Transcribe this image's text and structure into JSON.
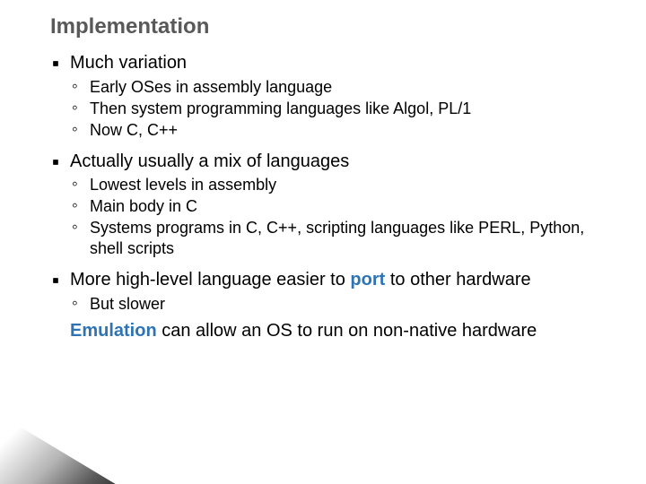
{
  "colors": {
    "title": "#595959",
    "text": "#000000",
    "highlight": "#2e74b5",
    "background": "#ffffff"
  },
  "typography": {
    "title_fontsize": 24,
    "l1_fontsize": 20,
    "l2_fontsize": 18,
    "font_family": "Lucida Sans"
  },
  "title": "Implementation",
  "b1": {
    "head": "Much variation",
    "s1": "Early OSes in assembly language",
    "s2": "Then system programming languages like Algol, PL/1",
    "s3": "Now C, C++"
  },
  "b2": {
    "head": "Actually usually a mix of languages",
    "s1": "Lowest levels in assembly",
    "s2": "Main body in C",
    "s3": "Systems programs in C, C++, scripting languages like PERL, Python, shell scripts"
  },
  "b3": {
    "pre": "More high-level language easier to ",
    "hl": "port",
    "post": " to other hardware",
    "s1": "But slower"
  },
  "b4": {
    "hl": "Emulation",
    "post": " can allow an OS to run on non-native hardware"
  }
}
